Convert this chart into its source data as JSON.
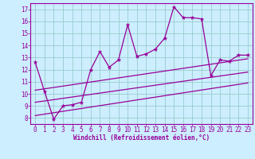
{
  "title": "",
  "xlabel": "Windchill (Refroidissement éolien,°C)",
  "bg_color": "#cceeff",
  "line_color": "#990099",
  "grid_color": "#99cccc",
  "xlim": [
    -0.5,
    23.5
  ],
  "ylim": [
    7.5,
    17.5
  ],
  "xticks": [
    0,
    1,
    2,
    3,
    4,
    5,
    6,
    7,
    8,
    9,
    10,
    11,
    12,
    13,
    14,
    15,
    16,
    17,
    18,
    19,
    20,
    21,
    22,
    23
  ],
  "yticks": [
    8,
    9,
    10,
    11,
    12,
    13,
    14,
    15,
    16,
    17
  ],
  "main_x": [
    0,
    1,
    2,
    3,
    4,
    5,
    6,
    7,
    8,
    9,
    10,
    11,
    12,
    13,
    14,
    15,
    16,
    17,
    18,
    19,
    20,
    21,
    22,
    23
  ],
  "main_y": [
    12.6,
    10.2,
    7.9,
    9.0,
    9.1,
    9.3,
    12.0,
    13.5,
    12.2,
    12.8,
    15.7,
    13.1,
    13.3,
    13.7,
    14.6,
    17.2,
    16.3,
    16.3,
    16.2,
    11.5,
    12.8,
    12.7,
    13.2,
    13.2
  ],
  "line1_x": [
    0,
    23
  ],
  "line1_y": [
    10.3,
    12.9
  ],
  "line2_x": [
    0,
    23
  ],
  "line2_y": [
    9.3,
    11.8
  ],
  "line3_x": [
    0,
    23
  ],
  "line3_y": [
    8.2,
    10.9
  ]
}
